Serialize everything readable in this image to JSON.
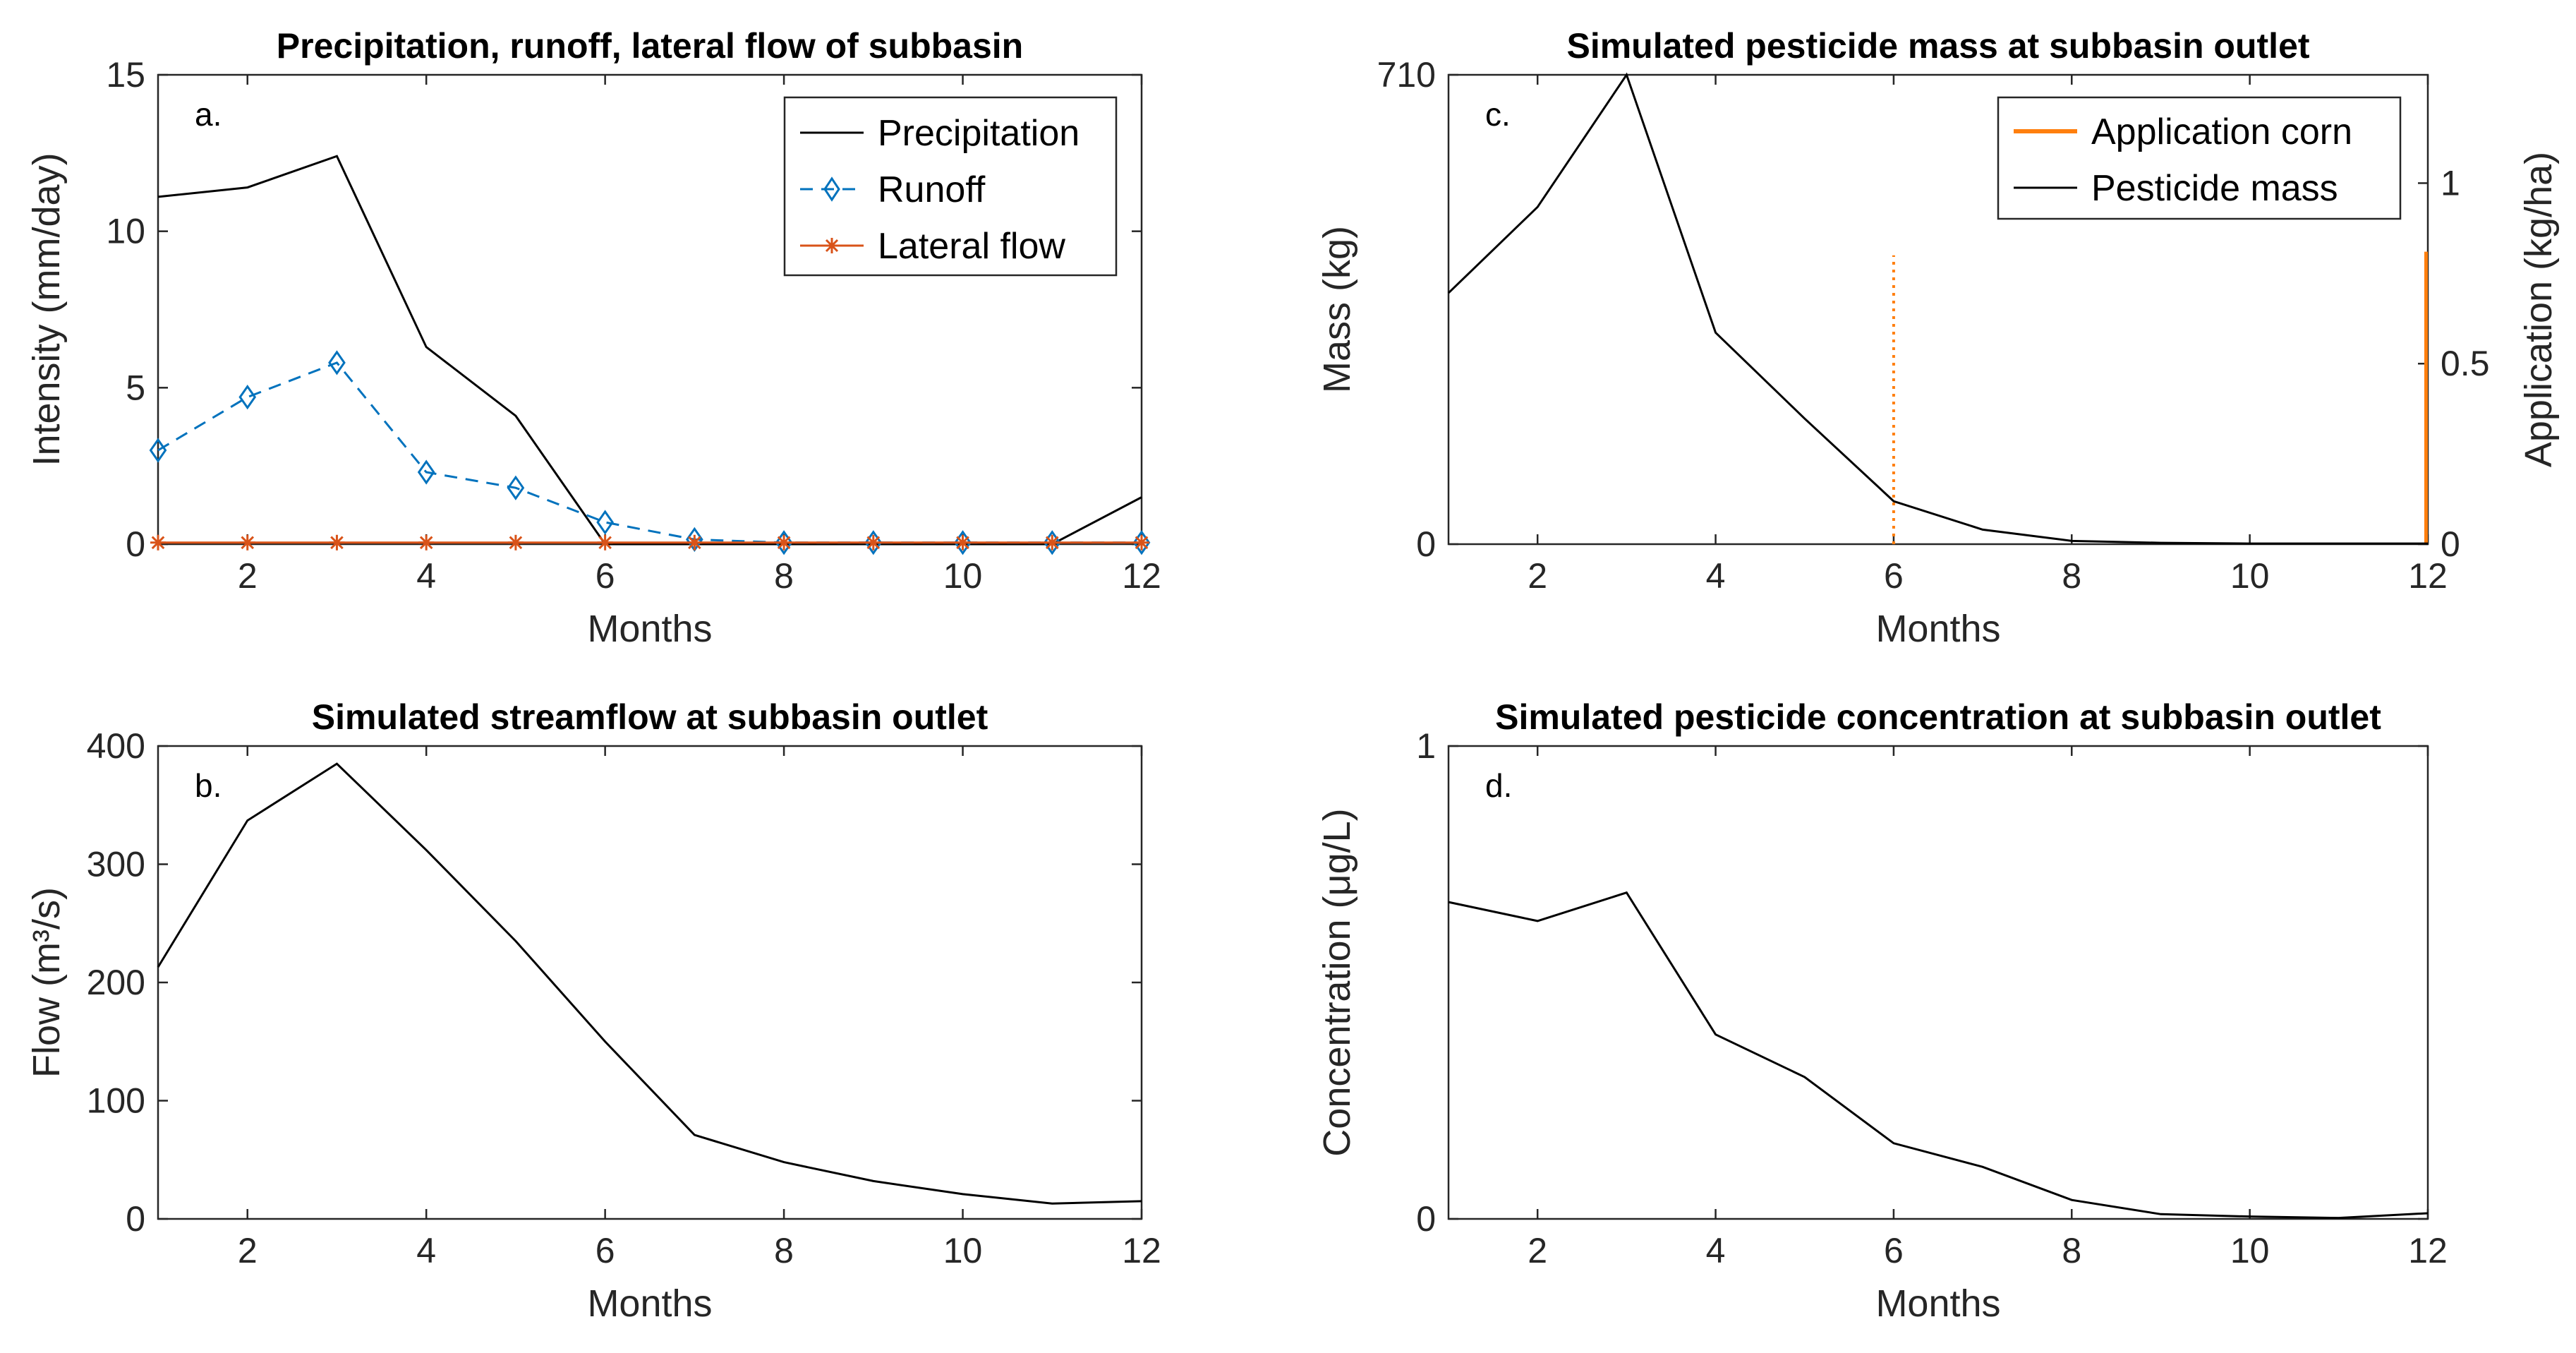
{
  "colors": {
    "precipitation": "#000000",
    "runoff": "#0072BD",
    "lateral": "#D95319",
    "application": "#FF7F0E",
    "axis": "#262626"
  },
  "chart_data": [
    {
      "id": "a",
      "type": "line",
      "panel_label": "a.",
      "title": "Precipitation, runoff, lateral flow of subbasin",
      "xlabel": "Months",
      "ylabel": "Intensity (mm/day)",
      "xlim": [
        1,
        12
      ],
      "ylim": [
        0,
        15
      ],
      "xticks": [
        2,
        4,
        6,
        8,
        10,
        12
      ],
      "yticks": [
        0,
        5,
        10,
        15
      ],
      "legend_position": "top-right",
      "x": [
        1,
        2,
        3,
        4,
        5,
        6,
        7,
        8,
        9,
        10,
        11,
        12
      ],
      "series": [
        {
          "name": "Precipitation",
          "style": "solid",
          "marker": "none",
          "values": [
            11.1,
            11.4,
            12.4,
            6.3,
            4.1,
            0.0,
            0.0,
            0.0,
            0.0,
            0.0,
            0.0,
            1.5
          ]
        },
        {
          "name": "Runoff",
          "style": "dashed",
          "marker": "diamond",
          "values": [
            3.0,
            4.7,
            5.8,
            2.3,
            1.8,
            0.7,
            0.15,
            0.05,
            0.05,
            0.05,
            0.05,
            0.05
          ]
        },
        {
          "name": "Lateral flow",
          "style": "solid",
          "marker": "asterisk",
          "values": [
            0.05,
            0.05,
            0.05,
            0.05,
            0.05,
            0.05,
            0.05,
            0.05,
            0.05,
            0.05,
            0.05,
            0.05
          ]
        }
      ]
    },
    {
      "id": "b",
      "type": "line",
      "panel_label": "b.",
      "title": "Simulated streamflow at subbasin outlet",
      "xlabel": "Months",
      "ylabel": "Flow (m³/s)",
      "xlim": [
        1,
        12
      ],
      "ylim": [
        0,
        400
      ],
      "xticks": [
        2,
        4,
        6,
        8,
        10,
        12
      ],
      "yticks": [
        0,
        100,
        200,
        300,
        400
      ],
      "x": [
        1,
        2,
        3,
        4,
        5,
        6,
        7,
        8,
        9,
        10,
        11,
        12
      ],
      "series": [
        {
          "name": "Streamflow",
          "style": "solid",
          "marker": "none",
          "values": [
            213,
            337,
            385,
            312,
            235,
            150,
            71,
            48,
            32,
            21,
            13,
            15
          ]
        }
      ]
    },
    {
      "id": "c",
      "type": "line",
      "panel_label": "c.",
      "title": "Simulated pesticide mass at subbasin outlet",
      "xlabel": "Months",
      "ylabel": "Mass (kg)",
      "y2label": "Application (kg/ha)",
      "xlim": [
        1,
        12
      ],
      "ylim": [
        0,
        710
      ],
      "y2lim": [
        0,
        1.3
      ],
      "xticks": [
        2,
        4,
        6,
        8,
        10,
        12
      ],
      "yticks": [
        0,
        710
      ],
      "y2ticks": [
        0,
        0.5,
        1
      ],
      "y2ticklabels": [
        "0",
        "0.5",
        "1"
      ],
      "legend_position": "top-right",
      "x": [
        1,
        2,
        3,
        4,
        5,
        6,
        7,
        8,
        9,
        10,
        11,
        12
      ],
      "series": [
        {
          "name": "Pesticide mass",
          "axis": "left",
          "style": "solid",
          "marker": "none",
          "values": [
            380,
            510,
            710,
            320,
            190,
            65,
            22,
            5,
            2,
            1,
            1,
            1
          ]
        }
      ],
      "applications": [
        {
          "name": "Application corn",
          "x": 6,
          "value": 0.8,
          "style": "dotted"
        },
        {
          "name": "Application corn",
          "x": 11.98,
          "value": 0.81,
          "style": "solid"
        }
      ],
      "legend": [
        "Application corn",
        "Pesticide mass"
      ]
    },
    {
      "id": "d",
      "type": "line",
      "panel_label": "d.",
      "title": "Simulated pesticide concentration at subbasin outlet",
      "xlabel": "Months",
      "ylabel": "Concentration (μg/L)",
      "xlim": [
        1,
        12
      ],
      "ylim": [
        0,
        1
      ],
      "xticks": [
        2,
        4,
        6,
        8,
        10,
        12
      ],
      "yticks": [
        0,
        1
      ],
      "x": [
        1,
        2,
        3,
        4,
        5,
        6,
        7,
        8,
        9,
        10,
        11,
        12
      ],
      "series": [
        {
          "name": "Concentration",
          "style": "solid",
          "marker": "none",
          "values": [
            0.67,
            0.63,
            0.69,
            0.39,
            0.3,
            0.16,
            0.11,
            0.04,
            0.01,
            0.005,
            0.002,
            0.012
          ]
        }
      ]
    }
  ]
}
